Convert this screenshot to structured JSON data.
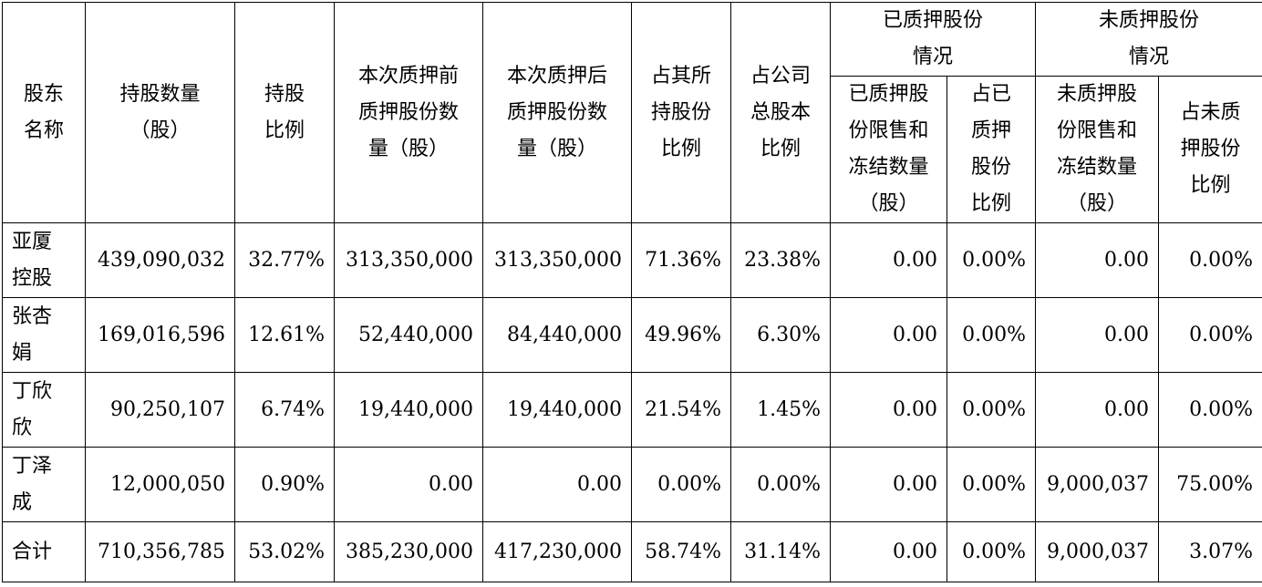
{
  "header": {
    "shareholder_name": [
      "股东",
      "名称"
    ],
    "shares_held": [
      "持股数量",
      "（股）"
    ],
    "holding_ratio": [
      "持股",
      "比例"
    ],
    "pledged_before": [
      "本次质押前",
      "质押股份数",
      "量（股）"
    ],
    "pledged_after": [
      "本次质押后",
      "质押股份数",
      "量（股）"
    ],
    "pct_of_own": [
      "占其所",
      "持股份",
      "比例"
    ],
    "pct_of_total": [
      "占公司",
      "总股本",
      "比例"
    ],
    "pledged_group": [
      "已质押股份",
      "情况"
    ],
    "unpledged_group": [
      "未质押股份",
      "情况"
    ],
    "pledged_restricted": [
      "已质押股",
      "份限售和",
      "冻结数量",
      "（股）"
    ],
    "pledged_ratio": [
      "占已",
      "质押",
      "股份",
      "比例"
    ],
    "unpledged_restricted": [
      "未质押股",
      "份限售和",
      "冻结数量",
      "（股）"
    ],
    "unpledged_ratio": [
      "占未质",
      "押股份",
      "比例"
    ]
  },
  "rows": [
    {
      "name": [
        "亚厦",
        "控股"
      ],
      "shares": "439,090,032",
      "ratio": "32.77%",
      "before": "313,350,000",
      "after": "313,350,000",
      "own_pct": "71.36%",
      "total_pct": "23.38%",
      "p_restricted": "0.00",
      "p_ratio": "0.00%",
      "u_restricted": "0.00",
      "u_ratio": "0.00%"
    },
    {
      "name": [
        "张杏",
        "娟"
      ],
      "shares": "169,016,596",
      "ratio": "12.61%",
      "before": "52,440,000",
      "after": "84,440,000",
      "own_pct": "49.96%",
      "total_pct": "6.30%",
      "p_restricted": "0.00",
      "p_ratio": "0.00%",
      "u_restricted": "0.00",
      "u_ratio": "0.00%"
    },
    {
      "name": [
        "丁欣",
        "欣"
      ],
      "shares": "90,250,107",
      "ratio": "6.74%",
      "before": "19,440,000",
      "after": "19,440,000",
      "own_pct": "21.54%",
      "total_pct": "1.45%",
      "p_restricted": "0.00",
      "p_ratio": "0.00%",
      "u_restricted": "0.00",
      "u_ratio": "0.00%"
    },
    {
      "name": [
        "丁泽",
        "成"
      ],
      "shares": "12,000,050",
      "ratio": "0.90%",
      "before": "0.00",
      "after": "0.00",
      "own_pct": "0.00%",
      "total_pct": "0.00%",
      "p_restricted": "0.00",
      "p_ratio": "0.00%",
      "u_restricted": "9,000,037",
      "u_ratio": "75.00%"
    },
    {
      "name": [
        "合计"
      ],
      "shares": "710,356,785",
      "ratio": "53.02%",
      "before": "385,230,000",
      "after": "417,230,000",
      "own_pct": "58.74%",
      "total_pct": "31.14%",
      "p_restricted": "0.00",
      "p_ratio": "0.00%",
      "u_restricted": "9,000,037",
      "u_ratio": "3.07%"
    }
  ]
}
